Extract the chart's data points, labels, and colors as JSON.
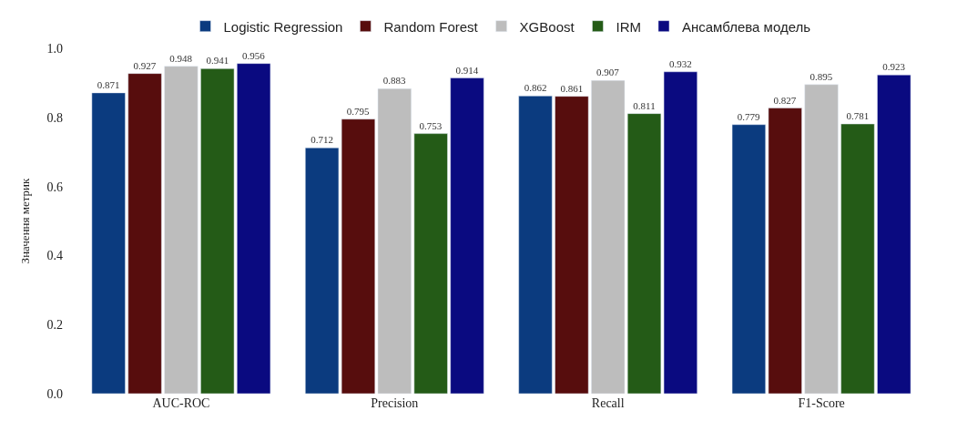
{
  "chart_data": {
    "type": "bar",
    "ylabel": "Значення метрик",
    "categories": [
      "AUC-ROC",
      "Precision",
      "Recall",
      "F1-Score"
    ],
    "series": [
      {
        "name": "Logistic Regression",
        "color": "#0b3b7f",
        "values": [
          0.871,
          0.712,
          0.862,
          0.779
        ]
      },
      {
        "name": "Random Forest",
        "color": "#570d0d",
        "values": [
          0.927,
          0.795,
          0.861,
          0.827
        ]
      },
      {
        "name": "XGBoost",
        "color": "#bdbdbd",
        "values": [
          0.948,
          0.883,
          0.907,
          0.895
        ]
      },
      {
        "name": "IRM",
        "color": "#245b17",
        "values": [
          0.941,
          0.753,
          0.811,
          0.781
        ]
      },
      {
        "name": "Ансамблева модель",
        "color": "#0a0a80",
        "values": [
          0.956,
          0.914,
          0.932,
          0.923
        ]
      }
    ],
    "ylim": [
      0,
      1.0
    ],
    "yticks": [
      {
        "value": 0,
        "label": "0.0"
      },
      0.2,
      0.4,
      0.6,
      0.8,
      {
        "value": 1.0,
        "label": "1.0"
      }
    ],
    "data_labels": true,
    "legend": "top"
  }
}
